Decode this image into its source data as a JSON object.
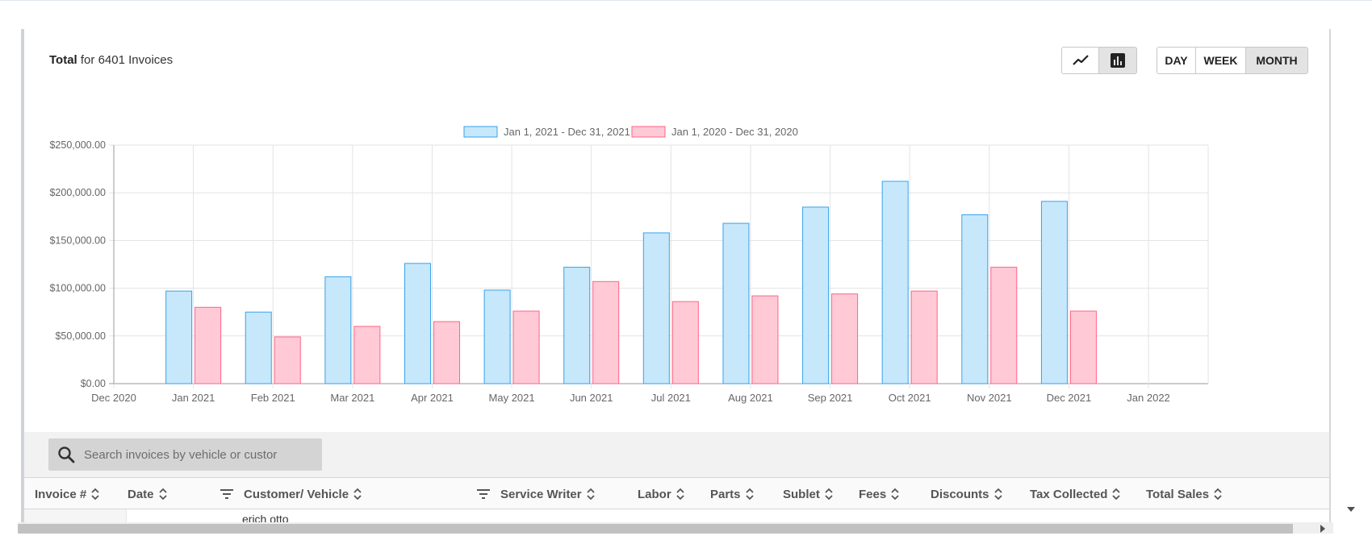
{
  "summary": {
    "bold": "Total",
    "rest": "for 6401 Invoices"
  },
  "chart_type_toggle": {
    "selected": "bar",
    "options": [
      "line-chart-icon",
      "bar-chart-icon"
    ]
  },
  "range_toggle": {
    "options": [
      "DAY",
      "WEEK",
      "MONTH"
    ],
    "selected": "MONTH"
  },
  "chart_data": {
    "type": "bar",
    "title": "",
    "xlabel": "",
    "ylabel": "",
    "ylim": [
      0,
      250000
    ],
    "x_ticks": [
      "Dec 2020",
      "Jan 2021",
      "Feb 2021",
      "Mar 2021",
      "Apr 2021",
      "May 2021",
      "Jun 2021",
      "Jul 2021",
      "Aug 2021",
      "Sep 2021",
      "Oct 2021",
      "Nov 2021",
      "Dec 2021",
      "Jan 2022"
    ],
    "y_ticks": [
      "$0.00",
      "$50,000.00",
      "$100,000.00",
      "$150,000.00",
      "$200,000.00",
      "$250,000.00"
    ],
    "categories": [
      "Jan 2021",
      "Feb 2021",
      "Mar 2021",
      "Apr 2021",
      "May 2021",
      "Jun 2021",
      "Jul 2021",
      "Aug 2021",
      "Sep 2021",
      "Oct 2021",
      "Nov 2021",
      "Dec 2021"
    ],
    "series": [
      {
        "name": "Jan 1, 2021 - Dec 31, 2021",
        "color": "#36a2eb",
        "fill": "#c7e8fb",
        "values": [
          97000,
          75000,
          112000,
          126000,
          98000,
          122000,
          158000,
          168000,
          185000,
          212000,
          177000,
          191000
        ]
      },
      {
        "name": "Jan 1, 2020 - Dec 31, 2020",
        "color": "#ff6384",
        "fill": "#ffcad6",
        "values": [
          80000,
          49000,
          60000,
          65000,
          76000,
          107000,
          86000,
          92000,
          94000,
          97000,
          122000,
          76000
        ]
      }
    ],
    "grid": true,
    "legend": "top-center"
  },
  "search": {
    "placeholder": "Search invoices by vehicle or custor"
  },
  "table": {
    "columns": [
      "Invoice #",
      "Date",
      "Customer/ Vehicle",
      "Service Writer",
      "Labor",
      "Parts",
      "Sublet",
      "Fees",
      "Discounts",
      "Tax Collected",
      "Total Sales"
    ],
    "first_row_partial": "erich otto"
  }
}
